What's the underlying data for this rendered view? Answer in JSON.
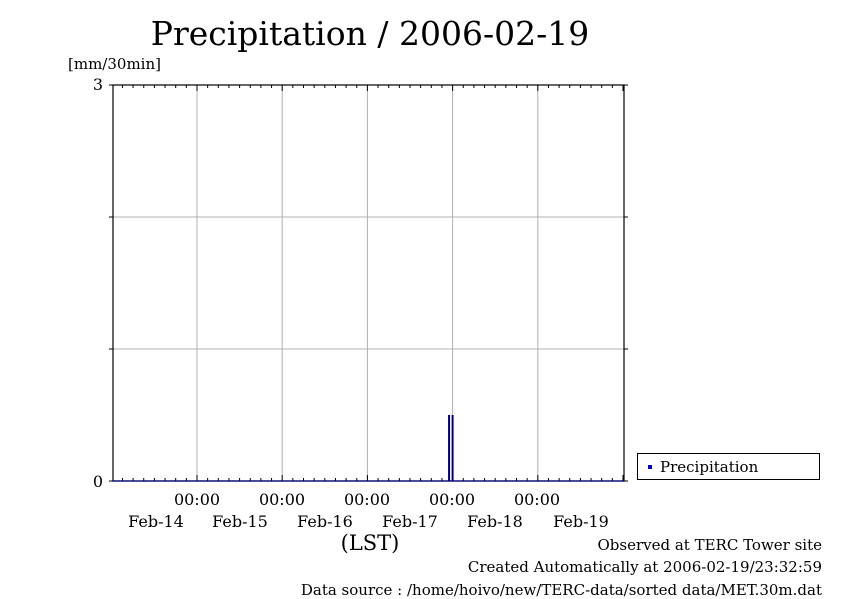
{
  "chart_data": {
    "type": "bar",
    "title": "Precipitation / 2006-02-19",
    "ylabel": "[mm/30min]",
    "xlabel": "(LST)",
    "ylim": [
      0,
      3
    ],
    "y_tick_labels": [
      "0",
      "3"
    ],
    "y_gridlines": [
      0,
      1,
      2,
      3
    ],
    "x_tick_times": [
      "00:00",
      "00:00",
      "00:00",
      "00:00",
      "00:00"
    ],
    "x_tick_dates": [
      "Feb-14",
      "Feb-15",
      "Feb-16",
      "Feb-17",
      "Feb-18",
      "Feb-19"
    ],
    "series": [
      {
        "name": "Precipitation",
        "color": "#000080",
        "points": [
          {
            "x": "2006-02-16 23:00",
            "y": 0.5
          },
          {
            "x": "2006-02-16 23:30",
            "y": 0.0
          },
          {
            "x": "2006-02-17 00:00",
            "y": 0.5
          }
        ]
      }
    ],
    "grid": true,
    "legend_position": "bottom-right outside"
  },
  "footer": {
    "observed": "Observed at TERC Tower site",
    "created": "Created Automatically at 2006-02-19/23:32:59",
    "source": "Data source : /home/hoivo/new/TERC-data/sorted  data/MET.30m.dat"
  }
}
